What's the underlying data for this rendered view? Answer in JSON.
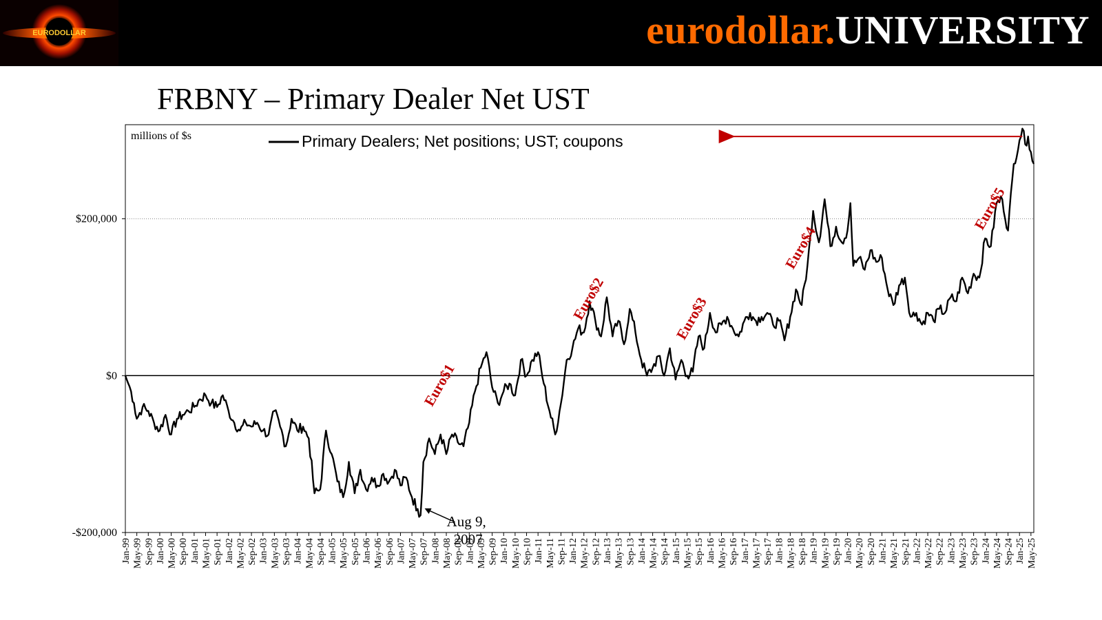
{
  "header": {
    "brand_part1": "eurodollar.",
    "brand_part2": "UNIVERSITY",
    "logo_text": "EURODOLLAR",
    "brand_color": "#ff6a00"
  },
  "slide_title": "FRBNY – Primary Dealer Net UST",
  "chart_data": {
    "type": "line",
    "unit_note": "millions of $s",
    "legend": "Primary Dealers; Net positions; UST; coupons",
    "legend_placement": "top",
    "ylim": [
      -200000,
      320000
    ],
    "yticks": [
      {
        "value": 200000,
        "label": "$200,000"
      },
      {
        "value": 0,
        "label": "$0"
      },
      {
        "value": -200000,
        "label": "-$200,000"
      }
    ],
    "xlim": [
      "1999-01",
      "2025-06"
    ],
    "x_tick_labels": [
      "Jan-99",
      "May-99",
      "Sep-99",
      "Jan-00",
      "May-00",
      "Sep-00",
      "Jan-01",
      "May-01",
      "Sep-01",
      "Jan-02",
      "May-02",
      "Sep-02",
      "Jan-03",
      "May-03",
      "Sep-03",
      "Jan-04",
      "May-04",
      "Sep-04",
      "Jan-05",
      "May-05",
      "Sep-05",
      "Jan-06",
      "May-06",
      "Sep-06",
      "Jan-07",
      "May-07",
      "Sep-07",
      "Jan-08",
      "May-08",
      "Sep-08",
      "Jan-09",
      "May-09",
      "Sep-09",
      "Jan-10",
      "May-10",
      "Sep-10",
      "Jan-11",
      "May-11",
      "Sep-11",
      "Jan-12",
      "May-12",
      "Sep-12",
      "Jan-13",
      "May-13",
      "Sep-13",
      "Jan-14",
      "May-14",
      "Sep-14",
      "Jan-15",
      "May-15",
      "Sep-15",
      "Jan-16",
      "May-16",
      "Sep-16",
      "Jan-17",
      "May-17",
      "Sep-17",
      "Jan-18",
      "May-18",
      "Sep-18",
      "Jan-19",
      "May-19",
      "Sep-19",
      "Jan-20",
      "May-20",
      "Sep-20",
      "Jan-21",
      "May-21",
      "Sep-21",
      "Jan-22",
      "May-22",
      "Sep-22",
      "Jan-23",
      "May-23",
      "Sep-23",
      "Jan-24",
      "May-24",
      "Sep-24",
      "Jan-25",
      "May-25"
    ],
    "grid": "dotted horizontal at $200,000",
    "series": [
      {
        "name": "Primary Dealers; Net positions; UST; coupons",
        "color": "#000000",
        "points": [
          [
            "1999-01",
            0
          ],
          [
            "1999-02",
            -10000
          ],
          [
            "1999-03",
            -20000
          ],
          [
            "1999-04",
            -35000
          ],
          [
            "1999-05",
            -55000
          ],
          [
            "1999-07",
            -40000
          ],
          [
            "1999-09",
            -45000
          ],
          [
            "1999-11",
            -60000
          ],
          [
            "2000-01",
            -70000
          ],
          [
            "2000-03",
            -50000
          ],
          [
            "2000-05",
            -75000
          ],
          [
            "2000-07",
            -55000
          ],
          [
            "2000-09",
            -50000
          ],
          [
            "2000-11",
            -45000
          ],
          [
            "2001-01",
            -40000
          ],
          [
            "2001-03",
            -30000
          ],
          [
            "2001-05",
            -25000
          ],
          [
            "2001-07",
            -35000
          ],
          [
            "2001-09",
            -40000
          ],
          [
            "2001-11",
            -25000
          ],
          [
            "2002-01",
            -45000
          ],
          [
            "2002-03",
            -60000
          ],
          [
            "2002-05",
            -70000
          ],
          [
            "2002-07",
            -60000
          ],
          [
            "2002-09",
            -65000
          ],
          [
            "2002-11",
            -60000
          ],
          [
            "2003-01",
            -70000
          ],
          [
            "2003-03",
            -75000
          ],
          [
            "2003-05",
            -45000
          ],
          [
            "2003-07",
            -65000
          ],
          [
            "2003-09",
            -90000
          ],
          [
            "2003-11",
            -55000
          ],
          [
            "2004-01",
            -70000
          ],
          [
            "2004-03",
            -65000
          ],
          [
            "2004-05",
            -80000
          ],
          [
            "2004-07",
            -150000
          ],
          [
            "2004-09",
            -145000
          ],
          [
            "2004-11",
            -70000
          ],
          [
            "2005-01",
            -100000
          ],
          [
            "2005-03",
            -135000
          ],
          [
            "2005-05",
            -155000
          ],
          [
            "2005-07",
            -110000
          ],
          [
            "2005-09",
            -150000
          ],
          [
            "2005-11",
            -120000
          ],
          [
            "2006-01",
            -145000
          ],
          [
            "2006-03",
            -130000
          ],
          [
            "2006-05",
            -140000
          ],
          [
            "2006-07",
            -125000
          ],
          [
            "2006-09",
            -135000
          ],
          [
            "2006-11",
            -120000
          ],
          [
            "2007-01",
            -140000
          ],
          [
            "2007-03",
            -130000
          ],
          [
            "2007-05",
            -155000
          ],
          [
            "2007-07",
            -170000
          ],
          [
            "2007-08",
            -178000
          ],
          [
            "2007-09",
            -110000
          ],
          [
            "2007-11",
            -80000
          ],
          [
            "2008-01",
            -100000
          ],
          [
            "2008-03",
            -75000
          ],
          [
            "2008-05",
            -100000
          ],
          [
            "2008-07",
            -75000
          ],
          [
            "2008-09",
            -85000
          ],
          [
            "2008-11",
            -90000
          ],
          [
            "2009-01",
            -60000
          ],
          [
            "2009-03",
            -20000
          ],
          [
            "2009-05",
            10000
          ],
          [
            "2009-07",
            30000
          ],
          [
            "2009-09",
            -15000
          ],
          [
            "2009-11",
            -35000
          ],
          [
            "2010-01",
            -20000
          ],
          [
            "2010-03",
            -10000
          ],
          [
            "2010-05",
            -25000
          ],
          [
            "2010-07",
            20000
          ],
          [
            "2010-09",
            0
          ],
          [
            "2010-11",
            20000
          ],
          [
            "2011-01",
            30000
          ],
          [
            "2011-03",
            -10000
          ],
          [
            "2011-05",
            -45000
          ],
          [
            "2011-07",
            -75000
          ],
          [
            "2011-09",
            -35000
          ],
          [
            "2011-11",
            20000
          ],
          [
            "2012-01",
            35000
          ],
          [
            "2012-03",
            60000
          ],
          [
            "2012-05",
            55000
          ],
          [
            "2012-07",
            95000
          ],
          [
            "2012-09",
            70000
          ],
          [
            "2012-11",
            50000
          ],
          [
            "2013-01",
            100000
          ],
          [
            "2013-03",
            50000
          ],
          [
            "2013-05",
            70000
          ],
          [
            "2013-07",
            40000
          ],
          [
            "2013-09",
            85000
          ],
          [
            "2013-11",
            55000
          ],
          [
            "2014-01",
            20000
          ],
          [
            "2014-03",
            0
          ],
          [
            "2014-05",
            10000
          ],
          [
            "2014-07",
            25000
          ],
          [
            "2014-09",
            0
          ],
          [
            "2014-11",
            35000
          ],
          [
            "2015-01",
            -5000
          ],
          [
            "2015-03",
            20000
          ],
          [
            "2015-05",
            0
          ],
          [
            "2015-07",
            5000
          ],
          [
            "2015-09",
            50000
          ],
          [
            "2015-11",
            35000
          ],
          [
            "2016-01",
            80000
          ],
          [
            "2016-03",
            55000
          ],
          [
            "2016-05",
            65000
          ],
          [
            "2016-07",
            75000
          ],
          [
            "2016-09",
            60000
          ],
          [
            "2016-11",
            50000
          ],
          [
            "2017-01",
            70000
          ],
          [
            "2017-03",
            80000
          ],
          [
            "2017-05",
            70000
          ],
          [
            "2017-07",
            75000
          ],
          [
            "2017-09",
            80000
          ],
          [
            "2017-11",
            65000
          ],
          [
            "2018-01",
            70000
          ],
          [
            "2018-03",
            45000
          ],
          [
            "2018-05",
            75000
          ],
          [
            "2018-07",
            110000
          ],
          [
            "2018-09",
            90000
          ],
          [
            "2018-11",
            140000
          ],
          [
            "2019-01",
            210000
          ],
          [
            "2019-03",
            170000
          ],
          [
            "2019-05",
            225000
          ],
          [
            "2019-07",
            165000
          ],
          [
            "2019-09",
            190000
          ],
          [
            "2019-11",
            170000
          ],
          [
            "2020-01",
            185000
          ],
          [
            "2020-02",
            220000
          ],
          [
            "2020-03",
            140000
          ],
          [
            "2020-05",
            150000
          ],
          [
            "2020-07",
            135000
          ],
          [
            "2020-09",
            160000
          ],
          [
            "2020-11",
            145000
          ],
          [
            "2021-01",
            150000
          ],
          [
            "2021-03",
            110000
          ],
          [
            "2021-05",
            90000
          ],
          [
            "2021-07",
            115000
          ],
          [
            "2021-09",
            125000
          ],
          [
            "2021-11",
            75000
          ],
          [
            "2022-01",
            80000
          ],
          [
            "2022-03",
            65000
          ],
          [
            "2022-05",
            80000
          ],
          [
            "2022-07",
            70000
          ],
          [
            "2022-09",
            85000
          ],
          [
            "2022-11",
            80000
          ],
          [
            "2023-01",
            100000
          ],
          [
            "2023-03",
            95000
          ],
          [
            "2023-05",
            125000
          ],
          [
            "2023-07",
            105000
          ],
          [
            "2023-09",
            130000
          ],
          [
            "2023-11",
            125000
          ],
          [
            "2024-01",
            175000
          ],
          [
            "2024-03",
            165000
          ],
          [
            "2024-05",
            220000
          ],
          [
            "2024-07",
            225000
          ],
          [
            "2024-09",
            185000
          ],
          [
            "2024-11",
            270000
          ],
          [
            "2025-01",
            300000
          ],
          [
            "2025-02",
            315000
          ],
          [
            "2025-03",
            295000
          ],
          [
            "2025-04",
            305000
          ],
          [
            "2025-05",
            285000
          ],
          [
            "2025-06",
            270000
          ]
        ]
      }
    ],
    "annotations": [
      {
        "text": "Euro$1",
        "x": "2008-04",
        "y": -15000,
        "color": "#c00000"
      },
      {
        "text": "Euro$2",
        "x": "2012-08",
        "y": 95000,
        "color": "#c00000"
      },
      {
        "text": "Euro$3",
        "x": "2015-08",
        "y": 70000,
        "color": "#c00000"
      },
      {
        "text": "Euro$4",
        "x": "2018-10",
        "y": 160000,
        "color": "#c00000"
      },
      {
        "text": "Euro$5",
        "x": "2024-04",
        "y": 210000,
        "color": "#c00000"
      },
      {
        "text_line1": "Aug 9,",
        "text_line2": "2007",
        "x": "2007-08",
        "y": -178000,
        "color": "#000000"
      }
    ],
    "reference_arrow": {
      "color": "#c00000",
      "y": 305000,
      "from": "2025-02",
      "to": "2016-06"
    }
  }
}
